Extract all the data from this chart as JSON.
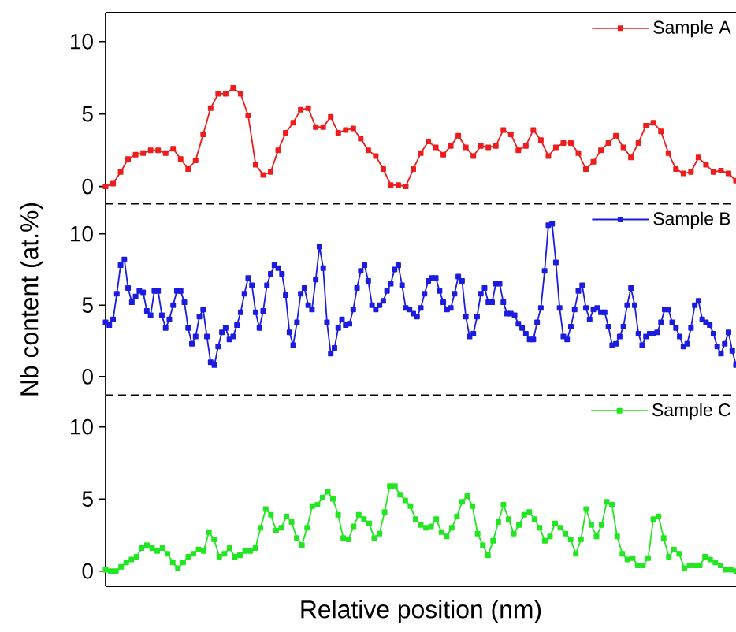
{
  "chart_data": [
    {
      "type": "line",
      "categories": [
        null,
        null,
        null,
        null,
        null,
        null,
        null,
        null,
        null,
        null,
        null,
        null,
        null,
        null,
        null,
        null,
        null,
        null,
        null,
        null,
        null,
        null,
        null,
        null,
        null,
        null,
        null,
        null,
        null,
        null,
        null,
        null,
        null,
        null,
        null,
        null,
        null,
        null,
        null,
        null,
        null,
        null,
        null,
        null,
        null,
        null,
        null,
        null,
        null,
        null,
        null,
        null,
        null,
        null,
        null,
        null,
        null,
        null,
        null,
        null,
        null,
        null,
        null,
        null,
        null,
        null,
        null,
        null,
        null,
        null,
        null,
        null,
        null,
        null,
        null,
        null,
        null,
        null,
        null,
        null,
        null,
        null,
        null,
        null,
        null
      ],
      "series": [
        {
          "name": "Sample A",
          "color": "#ee1c1c",
          "values": [
            0,
            0.2,
            1.0,
            1.9,
            2.2,
            2.3,
            2.5,
            2.5,
            2.3,
            2.6,
            1.9,
            1.2,
            1.8,
            3.6,
            5.4,
            6.4,
            6.4,
            6.8,
            6.4,
            4.9,
            1.5,
            0.8,
            1.0,
            2.5,
            3.7,
            4.4,
            5.3,
            5.4,
            4.1,
            4.1,
            4.8,
            3.7,
            3.9,
            4.0,
            3.3,
            2.5,
            2.1,
            1.2,
            0.1,
            0.1,
            0,
            1.2,
            2.3,
            3.1,
            2.7,
            2.2,
            2.8,
            3.5,
            2.7,
            2.1,
            2.8,
            2.7,
            2.8,
            3.9,
            3.6,
            2.5,
            2.8,
            3.9,
            3.2,
            2.1,
            2.7,
            3.0,
            3.0,
            2.3,
            1.2,
            1.7,
            2.5,
            3.0,
            3.5,
            2.7,
            2.0,
            3.0,
            4.2,
            4.4,
            3.8,
            2.3,
            1.2,
            0.9,
            1.0,
            2.0,
            1.5,
            1.0,
            1.1,
            0.9,
            0.4
          ]
        }
      ],
      "ylim": [
        -1.2,
        12
      ],
      "yticks": [
        0,
        5,
        10
      ],
      "tick_labels": "y",
      "legend": "top right",
      "marker": "square",
      "line_style": "solid"
    },
    {
      "type": "line",
      "categories": [
        null,
        null,
        null,
        null,
        null,
        null,
        null,
        null,
        null,
        null,
        null,
        null,
        null,
        null,
        null,
        null,
        null,
        null,
        null,
        null,
        null,
        null,
        null,
        null,
        null,
        null,
        null,
        null,
        null,
        null,
        null,
        null,
        null,
        null,
        null,
        null,
        null,
        null,
        null,
        null,
        null,
        null,
        null,
        null,
        null,
        null,
        null,
        null,
        null,
        null,
        null,
        null,
        null,
        null,
        null,
        null,
        null,
        null,
        null,
        null,
        null,
        null,
        null,
        null,
        null,
        null,
        null,
        null,
        null,
        null,
        null,
        null,
        null,
        null,
        null,
        null,
        null,
        null,
        null,
        null,
        null,
        null,
        null,
        null,
        null,
        null,
        null,
        null,
        null,
        null,
        null,
        null,
        null,
        null,
        null,
        null,
        null,
        null,
        null,
        null,
        null,
        null,
        null,
        null,
        null,
        null,
        null,
        null,
        null,
        null,
        null,
        null,
        null,
        null,
        null,
        null,
        null,
        null,
        null,
        null,
        null,
        null,
        null,
        null,
        null,
        null,
        null,
        null,
        null,
        null,
        null,
        null,
        null,
        null,
        null,
        null,
        null,
        null,
        null,
        null,
        null,
        null,
        null,
        null,
        null,
        null,
        null,
        null,
        null,
        null,
        null,
        null,
        null,
        null,
        null,
        null,
        null,
        null,
        null,
        null,
        null,
        null,
        null,
        null,
        null,
        null,
        null,
        null,
        null
      ],
      "series": [
        {
          "name": "Sample B",
          "color": "#1c1ce0",
          "values": [
            3.8,
            3.6,
            4.0,
            5.8,
            7.8,
            8.2,
            6.2,
            5.2,
            5.6,
            6.0,
            5.9,
            4.6,
            4.3,
            6.0,
            6.0,
            4.3,
            3.4,
            4.0,
            5.0,
            6.0,
            6.0,
            5.2,
            3.4,
            2.3,
            2.8,
            4.2,
            4.7,
            2.8,
            1.0,
            0.8,
            2.1,
            3.1,
            3.4,
            2.6,
            2.8,
            3.6,
            4.5,
            5.8,
            6.9,
            6.4,
            4.5,
            3.4,
            4.6,
            6.4,
            7.2,
            7.8,
            7.6,
            7.2,
            5.7,
            3.1,
            2.2,
            3.8,
            5.8,
            6.2,
            5.0,
            4.7,
            6.8,
            9.1,
            7.6,
            3.8,
            1.6,
            2.0,
            3.4,
            4.0,
            3.6,
            3.7,
            4.7,
            6.2,
            7.4,
            7.8,
            6.7,
            5.0,
            4.7,
            5.0,
            5.3,
            6.0,
            6.5,
            7.5,
            7.8,
            6.4,
            4.8,
            4.7,
            4.4,
            4.2,
            4.8,
            5.8,
            6.7,
            6.9,
            6.9,
            6.0,
            5.2,
            4.7,
            4.8,
            5.8,
            7.0,
            6.7,
            4.2,
            2.8,
            3.0,
            4.2,
            5.8,
            6.2,
            5.2,
            5.2,
            6.5,
            6.5,
            5.2,
            4.4,
            4.4,
            4.3,
            3.7,
            3.4,
            3.0,
            2.6,
            2.6,
            3.8,
            4.8,
            7.4,
            10.6,
            10.7,
            8.0,
            4.8,
            2.8,
            2.6,
            3.5,
            4.7,
            6.0,
            6.4,
            4.8,
            4.0,
            4.7,
            4.8,
            4.5,
            4.5,
            3.5,
            2.2,
            2.3,
            2.8,
            3.5,
            5.0,
            6.2,
            5.0,
            3.0,
            2.2,
            2.8,
            3.0,
            3.0,
            3.1,
            3.8,
            4.7,
            4.7,
            3.8,
            3.4,
            2.8,
            2.1,
            2.3,
            3.4,
            5.0,
            5.3,
            4.0,
            3.8,
            3.6,
            3.0,
            2.1,
            1.6,
            2.3,
            3.1,
            1.8,
            0.8
          ]
        }
      ],
      "ylim": [
        -1.3,
        12.1
      ],
      "yticks": [
        0,
        5,
        10
      ],
      "ylabel": "Nb content (at.%)",
      "tick_labels": "y",
      "legend": "top right",
      "marker": "square",
      "line_style": "solid"
    },
    {
      "type": "line",
      "categories": [
        null,
        null,
        null,
        null,
        null,
        null,
        null,
        null,
        null,
        null,
        null,
        null,
        null,
        null,
        null,
        null,
        null,
        null,
        null,
        null,
        null,
        null,
        null,
        null,
        null,
        null,
        null,
        null,
        null,
        null,
        null,
        null,
        null,
        null,
        null,
        null,
        null,
        null,
        null,
        null,
        null,
        null,
        null,
        null,
        null,
        null,
        null,
        null,
        null,
        null,
        null,
        null,
        null,
        null,
        null,
        null,
        null,
        null,
        null,
        null,
        null,
        null,
        null,
        null,
        null,
        null,
        null,
        null,
        null,
        null,
        null,
        null,
        null,
        null,
        null,
        null,
        null,
        null,
        null,
        null,
        null,
        null,
        null,
        null,
        null,
        null,
        null,
        null,
        null,
        null,
        null,
        null,
        null,
        null,
        null,
        null,
        null,
        null,
        null,
        null,
        null,
        null,
        null,
        null,
        null,
        null,
        null,
        null,
        null,
        null,
        null,
        null,
        null,
        null,
        null,
        null,
        null,
        null,
        null,
        null,
        null,
        null,
        null
      ],
      "series": [
        {
          "name": "Sample C",
          "color": "#22e622",
          "values": [
            0.1,
            0,
            0,
            0.3,
            0.6,
            0.8,
            1.0,
            1.6,
            1.8,
            1.6,
            1.4,
            1.6,
            1.2,
            0.6,
            0.2,
            0.6,
            1.0,
            1.2,
            1.5,
            1.4,
            2.7,
            2.2,
            1.0,
            1.2,
            1.6,
            1.0,
            1.1,
            1.4,
            1.4,
            1.6,
            3.0,
            4.3,
            3.9,
            2.8,
            3.0,
            3.8,
            3.4,
            2.3,
            1.8,
            3.0,
            4.5,
            4.6,
            5.1,
            5.5,
            5.0,
            3.9,
            2.3,
            2.2,
            3.1,
            3.9,
            3.6,
            3.3,
            2.3,
            2.6,
            4.1,
            5.9,
            5.9,
            5.3,
            4.9,
            4.5,
            3.6,
            3.2,
            3.0,
            3.1,
            3.6,
            2.7,
            2.4,
            3.0,
            3.8,
            4.8,
            5.2,
            4.5,
            2.6,
            1.8,
            1.1,
            2.1,
            3.4,
            4.6,
            3.6,
            2.6,
            3.2,
            3.9,
            4.1,
            3.6,
            3.0,
            2.1,
            2.4,
            3.3,
            3.0,
            2.6,
            2.2,
            1.2,
            2.2,
            4.3,
            3.2,
            2.4,
            3.2,
            4.8,
            4.6,
            2.4,
            1.2,
            0.8,
            0.9,
            0.4,
            0.4,
            0.9,
            3.6,
            3.8,
            2.3,
            1.0,
            1.5,
            1.2,
            0.2,
            0.4,
            0.4,
            0.4,
            1.0,
            0.8,
            0.6,
            0.4,
            0.1,
            0.1,
            0
          ]
        }
      ],
      "ylim": [
        -1.05,
        12.2
      ],
      "yticks": [
        0,
        5,
        10
      ],
      "xlabel": "Relative position (nm)",
      "tick_labels": "y",
      "legend": "top right",
      "marker": "square",
      "line_style": "solid"
    }
  ]
}
